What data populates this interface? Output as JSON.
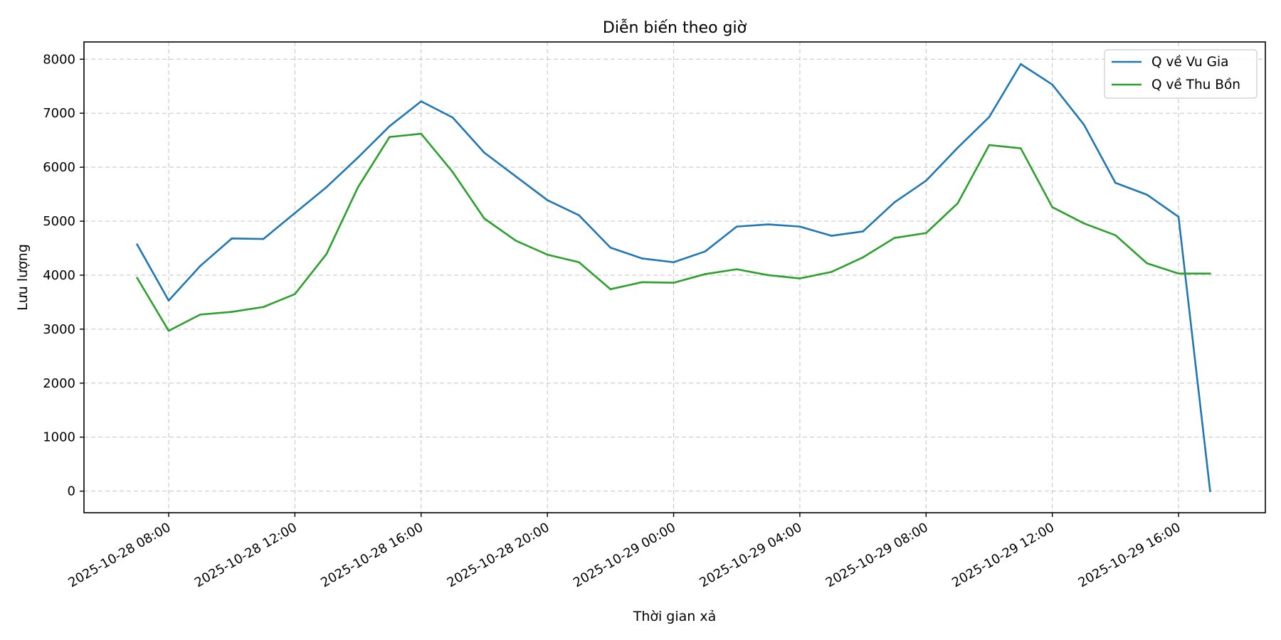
{
  "chart_data": {
    "type": "line",
    "title": "Diễn biến theo giờ",
    "xlabel": "Thời gian xả",
    "ylabel": "Lưu lượng",
    "x": [
      "2025-10-28 07:00",
      "2025-10-28 08:00",
      "2025-10-28 09:00",
      "2025-10-28 10:00",
      "2025-10-28 11:00",
      "2025-10-28 12:00",
      "2025-10-28 13:00",
      "2025-10-28 14:00",
      "2025-10-28 15:00",
      "2025-10-28 16:00",
      "2025-10-28 17:00",
      "2025-10-28 18:00",
      "2025-10-28 19:00",
      "2025-10-28 20:00",
      "2025-10-28 21:00",
      "2025-10-28 22:00",
      "2025-10-28 23:00",
      "2025-10-29 00:00",
      "2025-10-29 01:00",
      "2025-10-29 02:00",
      "2025-10-29 03:00",
      "2025-10-29 04:00",
      "2025-10-29 05:00",
      "2025-10-29 06:00",
      "2025-10-29 07:00",
      "2025-10-29 08:00",
      "2025-10-29 09:00",
      "2025-10-29 10:00",
      "2025-10-29 11:00",
      "2025-10-29 12:00",
      "2025-10-29 13:00",
      "2025-10-29 14:00",
      "2025-10-29 15:00",
      "2025-10-29 16:00",
      "2025-10-29 17:00"
    ],
    "series": [
      {
        "name": "Q về Vu Gia",
        "color": "#1f77b4",
        "values": [
          4570,
          3530,
          4170,
          4680,
          4670,
          5150,
          5630,
          6180,
          6760,
          7220,
          6920,
          6270,
          5830,
          5390,
          5110,
          4510,
          4310,
          4240,
          4440,
          4900,
          4940,
          4900,
          4730,
          4810,
          5350,
          5750,
          6360,
          6930,
          7910,
          7530,
          6790,
          5710,
          5490,
          5080,
          0
        ]
      },
      {
        "name": "Q về Thu Bồn",
        "color": "#2ca02c",
        "values": [
          3950,
          2970,
          3270,
          3320,
          3410,
          3650,
          4390,
          5630,
          6560,
          6620,
          5910,
          5050,
          4640,
          4380,
          4240,
          3740,
          3870,
          3860,
          4020,
          4110,
          4000,
          3940,
          4060,
          4330,
          4690,
          4780,
          5330,
          6410,
          6350,
          5260,
          4960,
          4740,
          4220,
          4030,
          4030
        ]
      }
    ],
    "xticks": [
      "2025-10-28 08:00",
      "2025-10-28 12:00",
      "2025-10-28 16:00",
      "2025-10-28 20:00",
      "2025-10-29 00:00",
      "2025-10-29 04:00",
      "2025-10-29 08:00",
      "2025-10-29 12:00",
      "2025-10-29 16:00"
    ],
    "yticks": [
      0,
      1000,
      2000,
      3000,
      4000,
      5000,
      6000,
      7000,
      8000
    ],
    "ylim": [
      -400,
      8320
    ],
    "xlim": [
      "2025-10-28 05:19",
      "2025-10-29 18:45"
    ],
    "grid": true,
    "legend": "top-right"
  }
}
